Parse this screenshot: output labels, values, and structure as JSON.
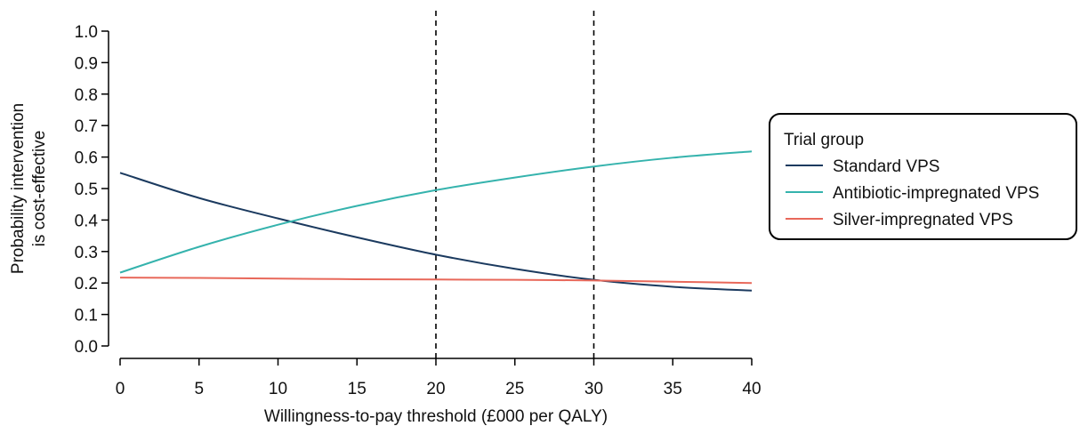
{
  "chart_data": {
    "type": "line",
    "title": "",
    "xlabel": "Willingness-to-pay threshold (£000 per QALY)",
    "ylabel": [
      "Probability intervention",
      "is cost-effective"
    ],
    "xlim": [
      0,
      40
    ],
    "ylim": [
      0,
      1
    ],
    "x_ticks": [
      0,
      5,
      10,
      15,
      20,
      25,
      30,
      35,
      40
    ],
    "x_tick_labels": [
      "0",
      "5",
      "10",
      "15",
      "20",
      "25",
      "30",
      "35",
      "40"
    ],
    "y_ticks": [
      0,
      0.1,
      0.2,
      0.3,
      0.4,
      0.5,
      0.6,
      0.7,
      0.8,
      0.9,
      1.0
    ],
    "y_tick_labels": [
      "0.0",
      "0.1",
      "0.2",
      "0.3",
      "0.4",
      "0.5",
      "0.6",
      "0.7",
      "0.8",
      "0.9",
      "1.0"
    ],
    "reference_lines_x": [
      20,
      30
    ],
    "grid": false,
    "legend": {
      "title": "Trial group",
      "position": "right"
    },
    "x": [
      0,
      5,
      10,
      15,
      20,
      25,
      30,
      35,
      40
    ],
    "series": [
      {
        "name": "Standard VPS",
        "color": "#1b3a5f",
        "values": [
          0.55,
          0.47,
          0.405,
          0.345,
          0.29,
          0.245,
          0.21,
          0.188,
          0.176
        ]
      },
      {
        "name": "Antibiotic-impregnated VPS",
        "color": "#35b3ad",
        "values": [
          0.233,
          0.315,
          0.385,
          0.445,
          0.495,
          0.535,
          0.57,
          0.598,
          0.618
        ]
      },
      {
        "name": "Silver-impregnated VPS",
        "color": "#e8685a",
        "values": [
          0.217,
          0.216,
          0.214,
          0.212,
          0.211,
          0.21,
          0.208,
          0.204,
          0.2
        ]
      }
    ]
  }
}
